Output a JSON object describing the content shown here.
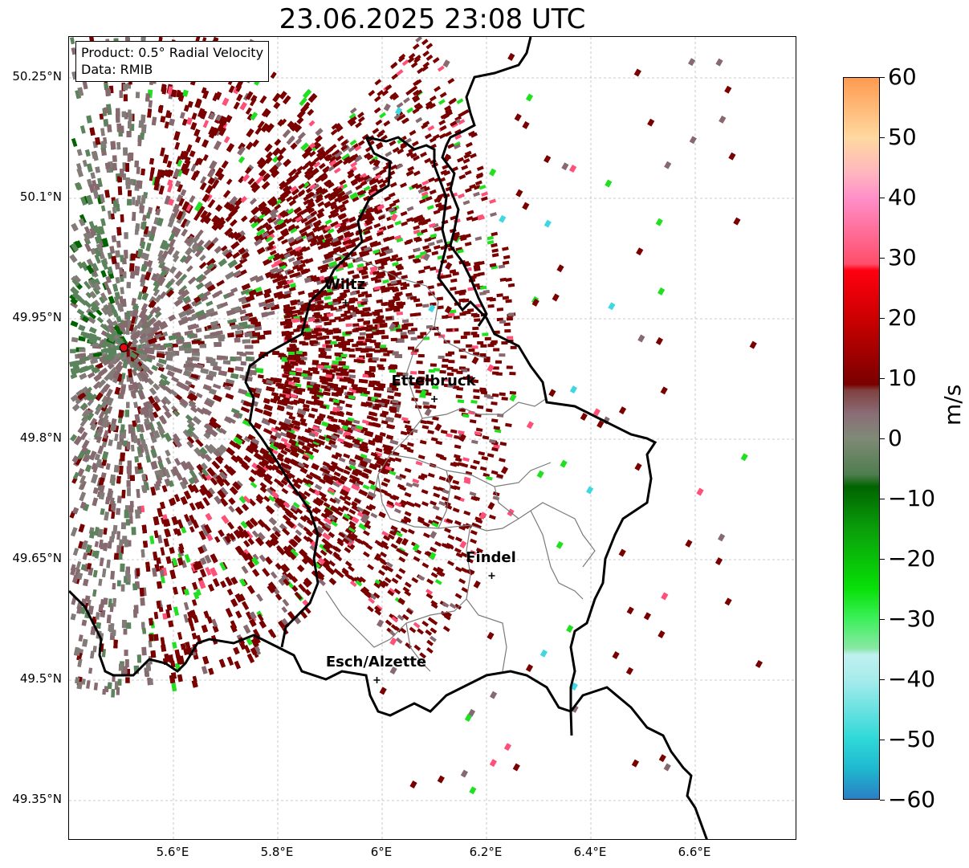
{
  "title": "23.06.2025 23:08 UTC",
  "info": {
    "product": "Product: 0.5° Radial Velocity",
    "data": "Data: RMIB"
  },
  "lat_labels": [
    "50.25°N",
    "50.1°N",
    "49.95°N",
    "49.8°N",
    "49.65°N",
    "49.5°N",
    "49.35°N"
  ],
  "lon_labels": [
    "5.6°E",
    "5.8°E",
    "6°E",
    "6.2°E",
    "6.4°E",
    "6.6°E"
  ],
  "cities": [
    {
      "name": "Wiltz",
      "lon": 5.93,
      "lat": 49.97
    },
    {
      "name": "Ettelbruck",
      "lon": 6.1,
      "lat": 49.85
    },
    {
      "name": "Findel",
      "lon": 6.21,
      "lat": 49.63
    },
    {
      "name": "Esch/Alzette",
      "lon": 5.99,
      "lat": 49.5
    }
  ],
  "radar": {
    "lon": 5.505,
    "lat": 49.914,
    "color": "#e30613"
  },
  "colorbar": {
    "unit": "m/s",
    "min": -60,
    "max": 60,
    "ticks": [
      "60",
      "50",
      "40",
      "30",
      "20",
      "10",
      "0",
      "−10",
      "−20",
      "−30",
      "−40",
      "−50",
      "−60"
    ],
    "stops": [
      {
        "v": -60,
        "color": "#2a7fc4"
      },
      {
        "v": -55,
        "color": "#1fb8d0"
      },
      {
        "v": -50,
        "color": "#2fd8d8"
      },
      {
        "v": -40,
        "color": "#a8ecec"
      },
      {
        "v": -36,
        "color": "#bff0ef"
      },
      {
        "v": -35,
        "color": "#8ae8a6"
      },
      {
        "v": -30,
        "color": "#3cf05a"
      },
      {
        "v": -25,
        "color": "#08e008"
      },
      {
        "v": -15,
        "color": "#0a9e0a"
      },
      {
        "v": -8,
        "color": "#006400"
      },
      {
        "v": -6,
        "color": "#4f7d4f"
      },
      {
        "v": 0,
        "color": "#7f8a76"
      },
      {
        "v": 4,
        "color": "#8a6e78"
      },
      {
        "v": 8,
        "color": "#804040"
      },
      {
        "v": 9,
        "color": "#7a0000"
      },
      {
        "v": 20,
        "color": "#cc0000"
      },
      {
        "v": 28,
        "color": "#ff0010"
      },
      {
        "v": 29,
        "color": "#ff4d6a"
      },
      {
        "v": 40,
        "color": "#ff8fc8"
      },
      {
        "v": 44,
        "color": "#ffb4c0"
      },
      {
        "v": 50,
        "color": "#ffd9a0"
      },
      {
        "v": 60,
        "color": "#ff9a50"
      }
    ]
  },
  "velocity_colors": {
    "inbound_strong": "#006400",
    "inbound": "#5c845c",
    "zero": "#827b78",
    "outbound_light": "#876a70",
    "outbound": "#7a0000",
    "outbound_strong": "#c80000",
    "pink": "#ff5078",
    "bright_green": "#20e020",
    "cyan": "#40d8e0"
  }
}
